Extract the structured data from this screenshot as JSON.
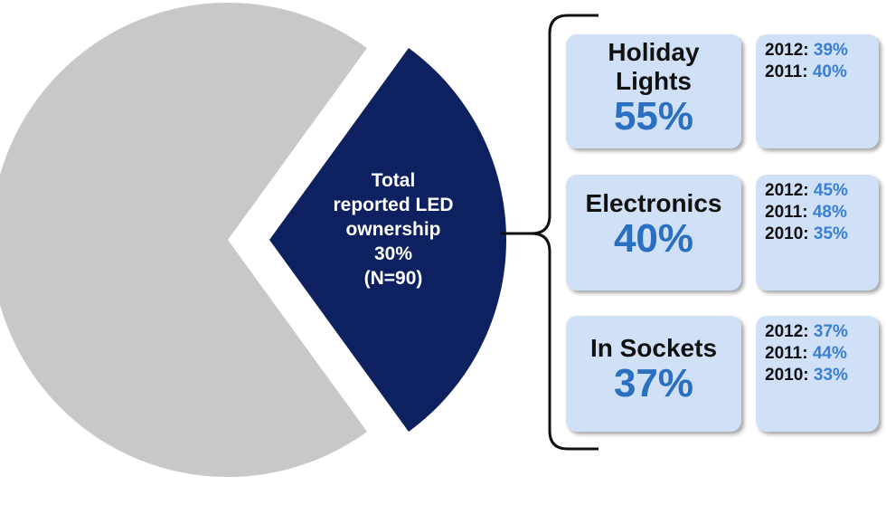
{
  "colors": {
    "other": "#c8c8c8",
    "led": "#0d2160",
    "box": "#cfe0f7",
    "accent": "#2a6fc0"
  },
  "chart_data": {
    "type": "pie",
    "slices": [
      {
        "name": "Total reported LED ownership",
        "value": 30
      },
      {
        "name": "",
        "value": 70
      }
    ],
    "slice_label": [
      "Total",
      "reported LED",
      "ownership",
      "30%",
      "(N=90)"
    ],
    "categories": [
      {
        "name": [
          "Holiday",
          "Lights"
        ],
        "value": "55%",
        "history": [
          {
            "year": "2012:",
            "value": "39%"
          },
          {
            "year": "2011:",
            "value": "40%"
          }
        ]
      },
      {
        "name": [
          "Electronics"
        ],
        "value": "40%",
        "history": [
          {
            "year": "2012:",
            "value": "45%"
          },
          {
            "year": "2011:",
            "value": "48%"
          },
          {
            "year": "2010:",
            "value": "35%"
          }
        ]
      },
      {
        "name": [
          "In Sockets"
        ],
        "value": "37%",
        "history": [
          {
            "year": "2012:",
            "value": "37%"
          },
          {
            "year": "2011:",
            "value": "44%"
          },
          {
            "year": "2010:",
            "value": "33%"
          }
        ]
      }
    ]
  }
}
